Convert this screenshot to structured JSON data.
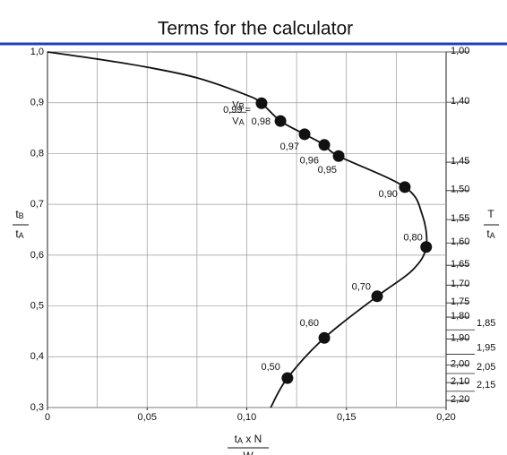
{
  "chart_data": {
    "type": "line",
    "title": "Terms for the calculator",
    "xlim": [
      0,
      0.2
    ],
    "ylim": [
      0.3,
      1.0
    ],
    "xticks": [
      {
        "value": 0,
        "label": "0"
      },
      {
        "value": 0.05,
        "label": "0,05"
      },
      {
        "value": 0.1,
        "label": "0,10"
      },
      {
        "value": 0.15,
        "label": "0,15"
      },
      {
        "value": 0.2,
        "label": "0,20"
      }
    ],
    "xgrid": [
      0.025,
      0.05,
      0.075,
      0.1,
      0.125,
      0.15,
      0.175
    ],
    "yticks": [
      {
        "value": 1.0,
        "label": "1,0"
      },
      {
        "value": 0.9,
        "label": "0,9"
      },
      {
        "value": 0.8,
        "label": "0,8"
      },
      {
        "value": 0.7,
        "label": "0,7"
      },
      {
        "value": 0.6,
        "label": "0,6"
      },
      {
        "value": 0.5,
        "label": "0,5"
      },
      {
        "value": 0.4,
        "label": "0,4"
      },
      {
        "value": 0.3,
        "label": "0,3"
      }
    ],
    "grid": true,
    "y2ticks": [
      {
        "value": 1.0,
        "label": "1,00",
        "y": 1.0
      },
      {
        "value": 1.4,
        "label": "1,40",
        "y": 0.901
      },
      {
        "value": 1.45,
        "label": "1,45",
        "y": 0.783
      },
      {
        "value": 1.5,
        "label": "1,50",
        "y": 0.727
      },
      {
        "value": 1.55,
        "label": "1,55",
        "y": 0.67
      },
      {
        "value": 1.6,
        "label": "1,60",
        "y": 0.624
      },
      {
        "value": 1.65,
        "label": "1,65",
        "y": 0.58
      },
      {
        "value": 1.7,
        "label": "1,70",
        "y": 0.541
      },
      {
        "value": 1.75,
        "label": "1,75",
        "y": 0.506
      },
      {
        "value": 1.8,
        "label": "1,80",
        "y": 0.478
      },
      {
        "value": 1.85,
        "label": "1,85",
        "y": 0.453
      },
      {
        "value": 1.9,
        "label": "1,90",
        "y": 0.435
      },
      {
        "value": 1.95,
        "label": "1,95",
        "y": 0.405
      },
      {
        "value": 2.0,
        "label": "2,00",
        "y": 0.384
      },
      {
        "value": 2.05,
        "label": "2,05",
        "y": 0.367
      },
      {
        "value": 2.1,
        "label": "2,10",
        "y": 0.349
      },
      {
        "value": 2.15,
        "label": "2,15",
        "y": 0.332
      },
      {
        "value": 2.2,
        "label": "2,20",
        "y": 0.314
      }
    ],
    "ylabel": {
      "num": "t",
      "num_sub": "B",
      "den": "t",
      "den_sub": "A"
    },
    "y2label": {
      "num": "T",
      "den": "t",
      "den_sub": "A"
    },
    "xlabel": {
      "t": "t",
      "t_sub": "A",
      "rest": " x N",
      "den": "W"
    },
    "curve": {
      "color": "#111111",
      "x": [
        0,
        0.025,
        0.05,
        0.075,
        0.1,
        0.1074,
        0.1169,
        0.129,
        0.1389,
        0.1461,
        0.1793,
        0.188,
        0.19,
        0.183,
        0.1654,
        0.1389,
        0.1204,
        0.112
      ],
      "y": [
        1.0,
        0.986,
        0.97,
        0.949,
        0.915,
        0.899,
        0.864,
        0.838,
        0.817,
        0.795,
        0.734,
        0.68,
        0.616,
        0.57,
        0.519,
        0.437,
        0.358,
        0.3
      ]
    },
    "points": {
      "color": "#111111",
      "labels": [
        "0,99 =",
        "0,98",
        "0,97",
        "0,96",
        "0,95",
        "0,90",
        "0,80",
        "0,70",
        "0,60",
        "0,50"
      ],
      "x": [
        0.1074,
        0.1169,
        0.129,
        0.1389,
        0.1461,
        0.1793,
        0.19,
        0.1654,
        0.1389,
        0.1204
      ],
      "y": [
        0.899,
        0.864,
        0.838,
        0.817,
        0.795,
        0.734,
        0.616,
        0.519,
        0.437,
        0.358
      ]
    },
    "annotation": {
      "num": "V",
      "num_sub": "B",
      "den": "V",
      "den_sub": "A"
    },
    "title_rule_color": "#1f3fbf"
  }
}
